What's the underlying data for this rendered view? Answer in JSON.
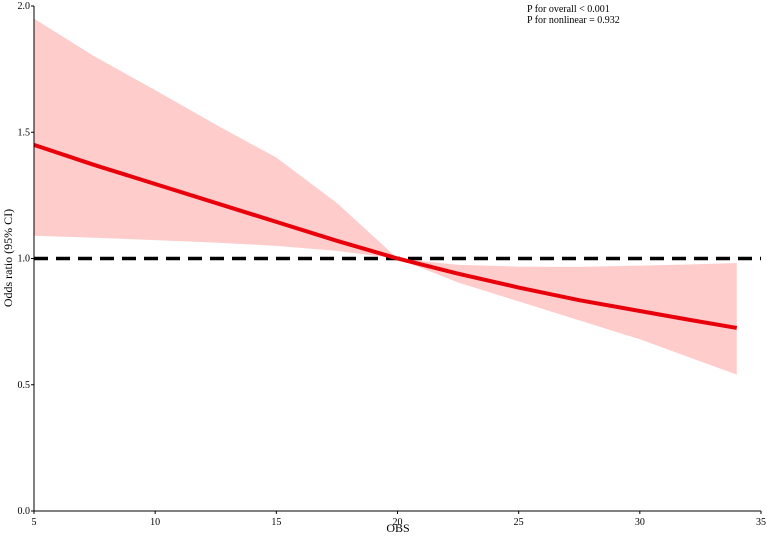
{
  "chart_data": {
    "type": "line",
    "xlabel": "OBS",
    "ylabel": "Odds ratio (95% CI)",
    "annotations": [
      "P for overall < 0.001",
      "P for nonlinear = 0.932"
    ],
    "x": [
      5,
      7.5,
      10,
      12.5,
      15,
      17.5,
      20,
      22.5,
      25,
      27.5,
      30,
      32,
      34
    ],
    "series": [
      {
        "color": "#e8000b",
        "band_color": "#ffcccc",
        "values": [
          1.45,
          1.37,
          1.295,
          1.22,
          1.145,
          1.07,
          1.0,
          0.94,
          0.885,
          0.835,
          0.792,
          0.758,
          0.725
        ],
        "upper": [
          1.95,
          1.8,
          1.667,
          1.53,
          1.4,
          1.22,
          1.0,
          0.975,
          0.968,
          0.967,
          0.972,
          0.976,
          0.982
        ],
        "lower": [
          1.09,
          1.082,
          1.073,
          1.063,
          1.05,
          1.03,
          1.0,
          0.905,
          0.83,
          0.755,
          0.68,
          0.61,
          0.54
        ]
      }
    ],
    "ref_line": 1,
    "xlim": [
      5,
      35
    ],
    "xticks": [
      5,
      10,
      15,
      20,
      25,
      30,
      35
    ],
    "ylim": [
      0,
      2
    ],
    "yticks": [
      {
        "value": 0,
        "label": "0.0"
      },
      {
        "value": 0.5,
        "label": "0.5"
      },
      {
        "value": 1,
        "label": "1.0"
      },
      {
        "value": 1.5,
        "label": "1.5"
      },
      {
        "value": 2,
        "label": "2.0"
      }
    ]
  }
}
